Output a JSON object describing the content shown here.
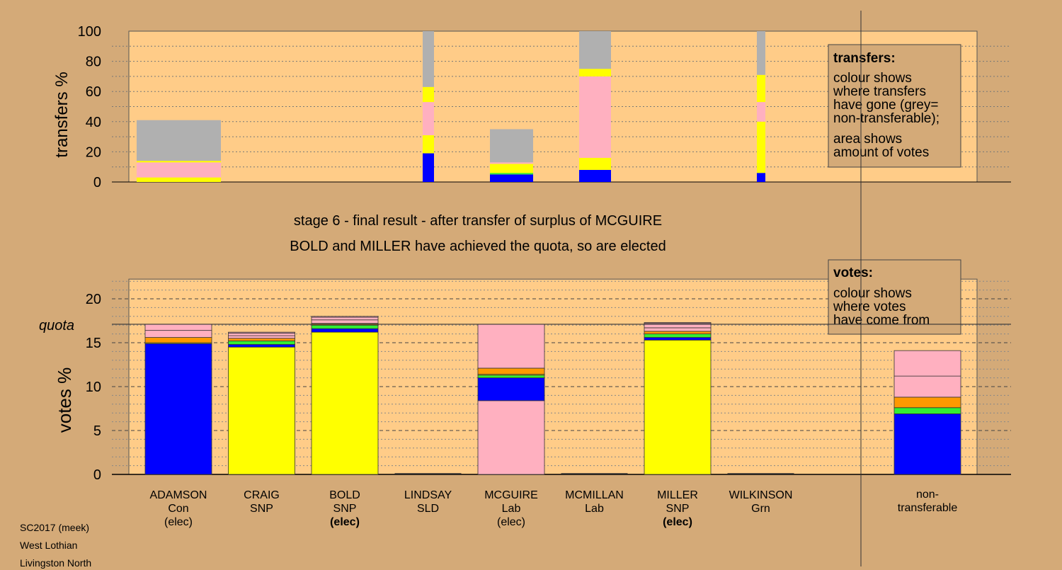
{
  "stage_title": "stage 6 - final result - after transfer of surplus of MCGUIRE",
  "stage_subtitle": "BOLD and MILLER have achieved the quota, so are elected",
  "footer": {
    "line1": "SC2017 (meek)",
    "line2": "West Lothian",
    "line3": "Livingston North"
  },
  "legend_transfers": {
    "title": "transfers:",
    "lines1": [
      "colour shows",
      "where transfers",
      "have gone (grey=",
      "non-transferable);"
    ],
    "lines2": [
      "area shows",
      "amount of votes"
    ]
  },
  "legend_votes": {
    "title": "votes:",
    "lines": [
      "colour shows",
      "where votes",
      "have come from"
    ]
  },
  "colors": {
    "con": "#0000ff",
    "snp": "#ffff00",
    "lab": "#ffb0c0",
    "sld": "#ff9900",
    "grn": "#33ee33",
    "nontransferable": "#b0b0b0",
    "plot_bg": "#ffcc88",
    "page_bg": "#d4aa78"
  },
  "chart_data": [
    {
      "type": "bar",
      "stacked": true,
      "variable_width": true,
      "ylabel": "transfers %",
      "ylim": [
        0,
        100
      ],
      "yticks": [
        0,
        20,
        40,
        60,
        80,
        100
      ],
      "grid": true,
      "note": "bar width shows amount of votes transferred",
      "bars": [
        {
          "candidate": "ADAMSON",
          "segments": [
            {
              "party": "snp",
              "from": 0,
              "to": 3
            },
            {
              "party": "lab",
              "from": 3,
              "to": 13
            },
            {
              "party": "snp",
              "from": 13,
              "to": 14
            },
            {
              "party": "nontransferable",
              "from": 14,
              "to": 41
            }
          ]
        },
        {
          "candidate": "LINDSAY",
          "segments": [
            {
              "party": "con",
              "from": 0,
              "to": 19
            },
            {
              "party": "snp",
              "from": 19,
              "to": 31
            },
            {
              "party": "lab",
              "from": 31,
              "to": 53
            },
            {
              "party": "snp",
              "from": 53,
              "to": 63
            },
            {
              "party": "nontransferable",
              "from": 63,
              "to": 100
            }
          ]
        },
        {
          "candidate": "MCGUIRE",
          "segments": [
            {
              "party": "con",
              "from": 0,
              "to": 5
            },
            {
              "party": "grn",
              "from": 5,
              "to": 6
            },
            {
              "party": "snp",
              "from": 6,
              "to": 12
            },
            {
              "party": "lab",
              "from": 12,
              "to": 13
            },
            {
              "party": "nontransferable",
              "from": 13,
              "to": 35
            }
          ]
        },
        {
          "candidate": "MCMILLAN",
          "segments": [
            {
              "party": "con",
              "from": 0,
              "to": 8
            },
            {
              "party": "snp",
              "from": 8,
              "to": 16
            },
            {
              "party": "lab",
              "from": 16,
              "to": 70
            },
            {
              "party": "snp",
              "from": 70,
              "to": 75
            },
            {
              "party": "nontransferable",
              "from": 75,
              "to": 100
            }
          ]
        },
        {
          "candidate": "WILKINSON",
          "segments": [
            {
              "party": "con",
              "from": 0,
              "to": 6
            },
            {
              "party": "snp",
              "from": 6,
              "to": 40
            },
            {
              "party": "lab",
              "from": 40,
              "to": 53
            },
            {
              "party": "snp",
              "from": 53,
              "to": 71
            },
            {
              "party": "nontransferable",
              "from": 71,
              "to": 100
            }
          ]
        }
      ]
    },
    {
      "type": "bar",
      "stacked": true,
      "ylabel": "votes %",
      "ylim": [
        0,
        22
      ],
      "yticks": [
        0,
        5,
        10,
        15,
        20
      ],
      "quota": 17.1,
      "quota_label": "quota",
      "grid": true,
      "categories": [
        {
          "name": "ADAMSON",
          "party": "Con",
          "status": "(elec)",
          "status_bold": false
        },
        {
          "name": "CRAIG",
          "party": "SNP",
          "status": "",
          "status_bold": false
        },
        {
          "name": "BOLD",
          "party": "SNP",
          "status": "(elec)",
          "status_bold": true
        },
        {
          "name": "LINDSAY",
          "party": "SLD",
          "status": "",
          "status_bold": false
        },
        {
          "name": "MCGUIRE",
          "party": "Lab",
          "status": "(elec)",
          "status_bold": false
        },
        {
          "name": "MCMILLAN",
          "party": "Lab",
          "status": "",
          "status_bold": false
        },
        {
          "name": "MILLER",
          "party": "SNP",
          "status": "(elec)",
          "status_bold": true
        },
        {
          "name": "WILKINSON",
          "party": "Grn",
          "status": "",
          "status_bold": false
        },
        {
          "name": "non-\ntransferable",
          "party": "",
          "status": "",
          "status_bold": false
        }
      ],
      "bars": [
        {
          "candidate": "ADAMSON",
          "segments": [
            {
              "party": "con",
              "from": 0,
              "to": 14.9
            },
            {
              "party": "snp",
              "from": 14.9,
              "to": 15.0
            },
            {
              "party": "sld",
              "from": 15.0,
              "to": 15.6
            },
            {
              "party": "lab",
              "from": 15.6,
              "to": 16.4
            },
            {
              "party": "lab",
              "from": 16.4,
              "to": 17.1
            }
          ]
        },
        {
          "candidate": "CRAIG",
          "segments": [
            {
              "party": "snp",
              "from": 0,
              "to": 14.5
            },
            {
              "party": "con",
              "from": 14.5,
              "to": 14.8
            },
            {
              "party": "grn",
              "from": 14.8,
              "to": 15.2
            },
            {
              "party": "sld",
              "from": 15.2,
              "to": 15.5
            },
            {
              "party": "lab",
              "from": 15.5,
              "to": 15.8
            },
            {
              "party": "lab",
              "from": 15.8,
              "to": 16.1
            },
            {
              "party": "lab",
              "from": 16.1,
              "to": 16.2
            }
          ]
        },
        {
          "candidate": "BOLD",
          "segments": [
            {
              "party": "snp",
              "from": 0,
              "to": 16.2
            },
            {
              "party": "con",
              "from": 16.2,
              "to": 16.6
            },
            {
              "party": "grn",
              "from": 16.6,
              "to": 17.0
            },
            {
              "party": "sld",
              "from": 17.0,
              "to": 17.2
            },
            {
              "party": "lab",
              "from": 17.2,
              "to": 17.6
            },
            {
              "party": "lab",
              "from": 17.6,
              "to": 17.9
            },
            {
              "party": "lab",
              "from": 17.9,
              "to": 18.0
            }
          ]
        },
        {
          "candidate": "LINDSAY",
          "segments": []
        },
        {
          "candidate": "MCGUIRE",
          "segments": [
            {
              "party": "lab",
              "from": 0,
              "to": 8.4
            },
            {
              "party": "con",
              "from": 8.4,
              "to": 11.0
            },
            {
              "party": "grn",
              "from": 11.0,
              "to": 11.3
            },
            {
              "party": "snp",
              "from": 11.3,
              "to": 11.4
            },
            {
              "party": "sld",
              "from": 11.4,
              "to": 12.1
            },
            {
              "party": "lab",
              "from": 12.1,
              "to": 17.1
            }
          ]
        },
        {
          "candidate": "MCMILLAN",
          "segments": []
        },
        {
          "candidate": "MILLER",
          "segments": [
            {
              "party": "snp",
              "from": 0,
              "to": 15.3
            },
            {
              "party": "con",
              "from": 15.3,
              "to": 15.6
            },
            {
              "party": "grn",
              "from": 15.6,
              "to": 16.0
            },
            {
              "party": "sld",
              "from": 16.0,
              "to": 16.3
            },
            {
              "party": "lab",
              "from": 16.3,
              "to": 16.7
            },
            {
              "party": "lab",
              "from": 16.7,
              "to": 17.2
            },
            {
              "party": "lab",
              "from": 17.2,
              "to": 17.3
            }
          ]
        },
        {
          "candidate": "WILKINSON",
          "segments": []
        },
        {
          "candidate": "non-transferable",
          "segments": [
            {
              "party": "con",
              "from": 0,
              "to": 6.9
            },
            {
              "party": "grn",
              "from": 6.9,
              "to": 7.6
            },
            {
              "party": "sld",
              "from": 7.6,
              "to": 8.8
            },
            {
              "party": "lab",
              "from": 8.8,
              "to": 11.2
            },
            {
              "party": "lab",
              "from": 11.2,
              "to": 14.1
            }
          ]
        }
      ]
    }
  ]
}
